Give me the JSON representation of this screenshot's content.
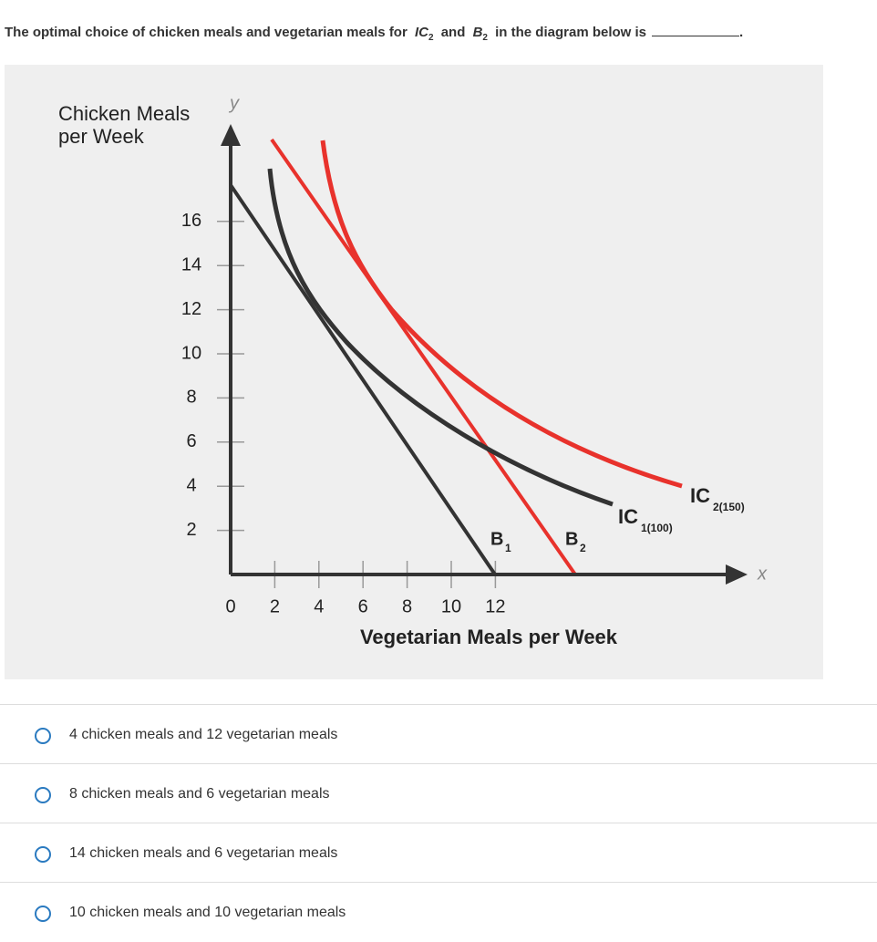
{
  "question": {
    "before": "The optimal choice of chicken meals and vegetarian meals for",
    "ic": "IC",
    "ic_sub": "2",
    "middle": "and",
    "b": "B",
    "b_sub": "2",
    "after": "in the diagram below is",
    "end": "."
  },
  "diagram": {
    "y_title_line1": "Chicken Meals",
    "y_title_line2": "per Week",
    "y_letter": "y",
    "x_letter": "x",
    "x_title": "Vegetarian Meals per Week",
    "yticks": [
      16,
      14,
      12,
      10,
      8,
      6,
      4,
      2
    ],
    "xticks": [
      0,
      2,
      4,
      6,
      8,
      10,
      12
    ],
    "b1": "B",
    "b1_sub": "1",
    "b2": "B",
    "b2_sub": "2",
    "ic1": "IC",
    "ic1_sub": "1(100)",
    "ic2": "IC",
    "ic2_sub": "2(150)"
  },
  "options": [
    "4 chicken meals and 12 vegetarian meals",
    "8 chicken meals and 6 vegetarian meals",
    "14 chicken meals and 6 vegetarian meals",
    "10 chicken meals and 10 vegetarian meals"
  ]
}
